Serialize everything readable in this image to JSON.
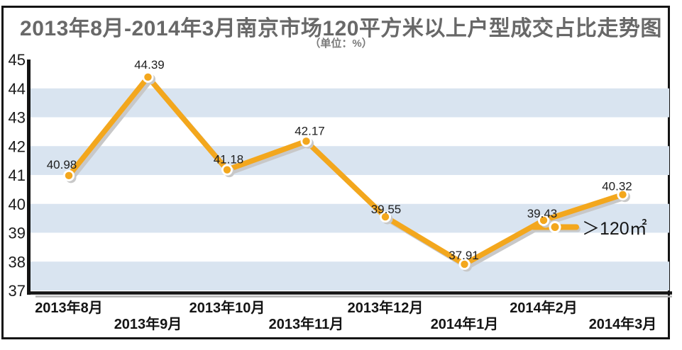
{
  "page": {
    "title": "2013年8月-2014年3月南京市场120平方米以上户型成交占比走势图",
    "subtitle": "（单位：%）"
  },
  "legend": {
    "label": "＞120㎡"
  },
  "colors": {
    "line": "#F3A71D",
    "line_shadow": "#C8C8C8",
    "stripe": "#D9E4F0",
    "axis": "#141414",
    "axis_shadow": "#B3B3B3",
    "dot_core": "#F3A71D",
    "dot_ring": "#FFFFFF",
    "value_label": "#202020",
    "tick_label": "#1B1B1B",
    "legend_text": "#161616"
  },
  "chart_data": {
    "type": "line",
    "title": "2013年8月-2014年3月南京市场120平方米以上户型成交占比走势图",
    "unit": "%",
    "categories": [
      "2013年8月",
      "2013年9月",
      "2013年10月",
      "2013年11月",
      "2013年12月",
      "2014年1月",
      "2014年2月",
      "2014年3月"
    ],
    "series": [
      {
        "name": "＞120㎡",
        "values": [
          40.98,
          44.39,
          41.18,
          42.17,
          39.55,
          37.91,
          39.43,
          40.32
        ]
      }
    ],
    "value_labels": [
      "40.98",
      "44.39",
      "41.18",
      "42.17",
      "39.55",
      "37.91",
      "39.43",
      "40.32"
    ],
    "ylim": [
      37,
      45
    ],
    "yticks": [
      45,
      44,
      43,
      42,
      41,
      40,
      39,
      38,
      37
    ],
    "stripes": [
      [
        44,
        43
      ],
      [
        42,
        41
      ],
      [
        40,
        39
      ],
      [
        38,
        37
      ]
    ],
    "grid": "striped-bands",
    "legend_position": "middle-right",
    "xlabel": "",
    "ylabel": "%"
  }
}
